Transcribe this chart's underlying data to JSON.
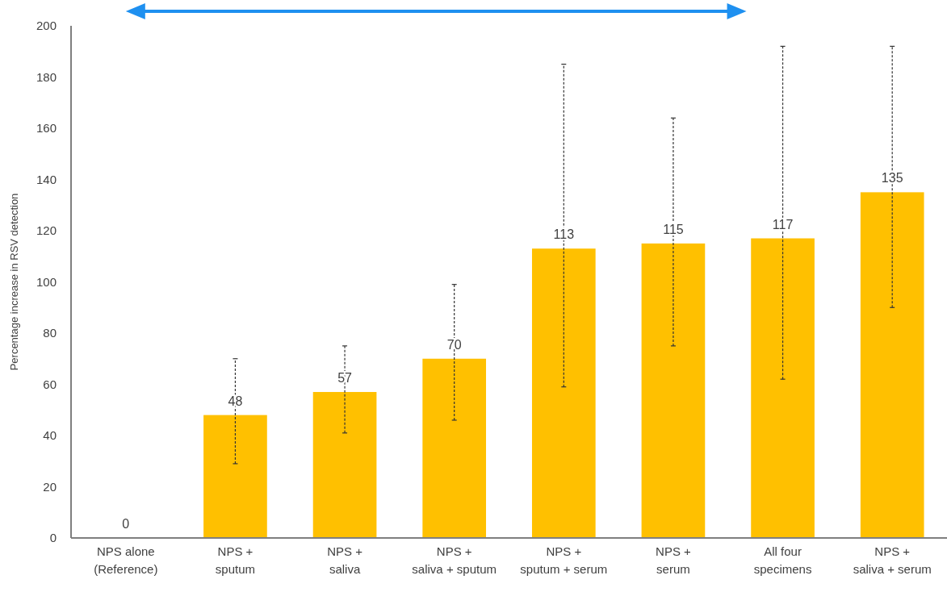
{
  "chart_data": {
    "type": "bar",
    "ylabel": "Percentage increase in RSV detection",
    "categories": [
      "NPS alone\n(Reference)",
      "NPS +\nsputum",
      "NPS +\nsaliva",
      "NPS +\nsaliva + sputum",
      "NPS +\nsputum + serum",
      "NPS +\nserum",
      "All four\nspecimens",
      "NPS +\nsaliva + serum"
    ],
    "values": [
      0,
      48,
      57,
      70,
      113,
      115,
      117,
      135
    ],
    "errors": [
      null,
      [
        29,
        70
      ],
      [
        41,
        75
      ],
      [
        46,
        99
      ],
      [
        59,
        185
      ],
      [
        75,
        164
      ],
      [
        62,
        192
      ],
      [
        90,
        192
      ]
    ],
    "color": "#ffc000",
    "ylim": [
      0,
      200
    ],
    "yticks": [
      0,
      20,
      40,
      60,
      80,
      100,
      120,
      140,
      160,
      180,
      200
    ],
    "data_labels": true,
    "grid": false
  }
}
